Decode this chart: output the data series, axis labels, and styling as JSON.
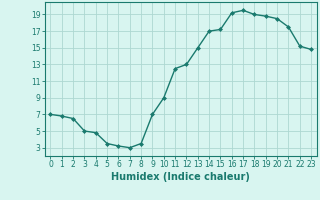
{
  "x": [
    0,
    1,
    2,
    3,
    4,
    5,
    6,
    7,
    8,
    9,
    10,
    11,
    12,
    13,
    14,
    15,
    16,
    17,
    18,
    19,
    20,
    21,
    22,
    23
  ],
  "y": [
    7.0,
    6.8,
    6.5,
    5.0,
    4.8,
    3.5,
    3.2,
    3.0,
    3.5,
    7.0,
    9.0,
    12.5,
    13.0,
    15.0,
    17.0,
    17.2,
    19.2,
    19.5,
    19.0,
    18.8,
    18.5,
    17.5,
    15.2,
    14.8
  ],
  "line_color": "#1a7a6e",
  "marker": "D",
  "marker_size": 2.0,
  "bg_color": "#d8f5f0",
  "grid_color": "#aed8d2",
  "xlabel": "Humidex (Indice chaleur)",
  "xlabel_fontsize": 7,
  "ytick_labels": [
    "3",
    "5",
    "7",
    "9",
    "11",
    "13",
    "15",
    "17",
    "19"
  ],
  "ytick_values": [
    3,
    5,
    7,
    9,
    11,
    13,
    15,
    17,
    19
  ],
  "xtick_values": [
    0,
    1,
    2,
    3,
    4,
    5,
    6,
    7,
    8,
    9,
    10,
    11,
    12,
    13,
    14,
    15,
    16,
    17,
    18,
    19,
    20,
    21,
    22,
    23
  ],
  "xlim": [
    -0.5,
    23.5
  ],
  "ylim": [
    2.0,
    20.5
  ],
  "tick_color": "#1a7a6e",
  "axis_color": "#1a7a6e",
  "tick_fontsize": 5.5,
  "linewidth": 1.0
}
